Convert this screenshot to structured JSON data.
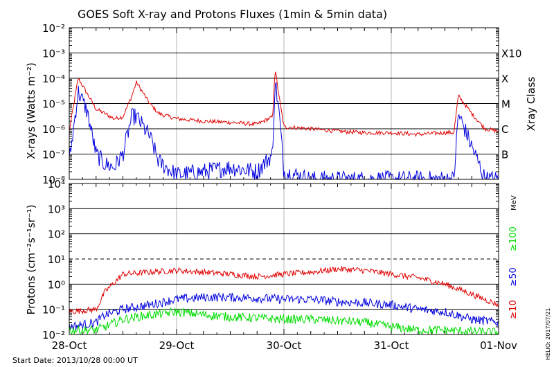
{
  "title": "GOES Soft X-ray and Protons Fluxes  (1min & 5min data)",
  "footer": {
    "start_date": "Start Date: 2013/10/28 00:00 UT",
    "credit": "HELIO: 2017/07/21"
  },
  "colors": {
    "xray_long": "#e00000",
    "xray_short": "#0000dd",
    "p10": "#e00000",
    "p50": "#0000dd",
    "p100": "#00dd00",
    "axis": "#000000",
    "vgrid": "#b4b4b4"
  },
  "x_axis": {
    "start": "2013-10-28",
    "end": "2013-11-01",
    "tick_labels": [
      "28-Oct",
      "29-Oct",
      "30-Oct",
      "31-Oct",
      "01-Nov"
    ]
  },
  "chart_data": [
    {
      "type": "line",
      "title": "GOES Soft X-ray and Protons Fluxes  (1min & 5min data)",
      "ylabel": "X-rays (Watts m⁻²)",
      "yscale": "log",
      "ylim": [
        1e-08,
        0.01
      ],
      "y_tick_labels": [
        "10⁻⁸",
        "10⁻⁷",
        "10⁻⁶",
        "10⁻⁵",
        "10⁻⁴",
        "10⁻³",
        "10⁻²"
      ],
      "right_axis": {
        "label": "Xray Class",
        "classes": [
          {
            "label": "B",
            "value": 1e-07
          },
          {
            "label": "C",
            "value": 1e-06
          },
          {
            "label": "M",
            "value": 1e-05
          },
          {
            "label": "X",
            "value": 0.0001
          },
          {
            "label": "X10",
            "value": 0.001
          }
        ]
      },
      "grid": true,
      "x": [
        "2013-10-28 00:00",
        "2013-10-28 02:00",
        "2013-10-28 04:00",
        "2013-10-28 06:00",
        "2013-10-28 08:00",
        "2013-10-28 10:00",
        "2013-10-28 12:00",
        "2013-10-28 14:00",
        "2013-10-28 15:00",
        "2013-10-28 18:00",
        "2013-10-28 20:00",
        "2013-10-29 00:00",
        "2013-10-29 06:00",
        "2013-10-29 12:00",
        "2013-10-29 18:00",
        "2013-10-29 21:30",
        "2013-10-29 22:00",
        "2013-10-29 23:00",
        "2013-10-30 00:00",
        "2013-10-30 06:00",
        "2013-10-30 12:00",
        "2013-10-30 18:00",
        "2013-10-31 00:00",
        "2013-10-31 06:00",
        "2013-10-31 12:00",
        "2013-10-31 14:00",
        "2013-10-31 15:00",
        "2013-10-31 18:00",
        "2013-10-31 21:00",
        "2013-11-01 00:00"
      ],
      "series": [
        {
          "color": "#e00000",
          "values": [
            8e-07,
            0.0001,
            2.5e-05,
            6e-06,
            4e-06,
            2.5e-06,
            3e-06,
            2e-05,
            7e-05,
            1e-05,
            4e-06,
            2.5e-06,
            2e-06,
            1.8e-06,
            1.5e-06,
            3e-06,
            0.00025,
            1.5e-05,
            1.2e-06,
            1e-06,
            8e-07,
            7e-07,
            7e-07,
            6e-07,
            7e-07,
            7e-07,
            2e-05,
            4e-06,
            1e-06,
            8e-07
          ]
        },
        {
          "color": "#0000dd",
          "values": [
            5e-08,
            3e-05,
            5e-06,
            1e-07,
            4e-08,
            3e-08,
            1e-07,
            3e-06,
            3e-06,
            5e-07,
            5e-08,
            1.5e-08,
            2e-08,
            3e-08,
            2e-08,
            1e-07,
            0.0001,
            3e-06,
            2e-08,
            1e-08,
            1e-08,
            1e-08,
            1e-08,
            1e-08,
            1e-08,
            1e-08,
            4e-06,
            2e-07,
            1e-08,
            1e-08
          ]
        }
      ]
    },
    {
      "type": "line",
      "ylabel": "Protons (cm⁻²s⁻¹sr⁻¹)",
      "yscale": "log",
      "ylim": [
        0.01,
        10000
      ],
      "y_tick_labels": [
        "10⁻²",
        "10⁻¹",
        "10⁰",
        "10¹",
        "10²",
        "10³",
        "10⁴"
      ],
      "threshold_line": 10,
      "right_axis": {
        "unit": "MeV"
      },
      "grid": true,
      "x": [
        "2013-10-28 00:00",
        "2013-10-28 06:00",
        "2013-10-28 08:00",
        "2013-10-28 12:00",
        "2013-10-28 18:00",
        "2013-10-29 00:00",
        "2013-10-29 06:00",
        "2013-10-29 12:00",
        "2013-10-29 18:00",
        "2013-10-30 00:00",
        "2013-10-30 06:00",
        "2013-10-30 12:00",
        "2013-10-30 18:00",
        "2013-10-31 00:00",
        "2013-10-31 06:00",
        "2013-10-31 12:00",
        "2013-10-31 18:00",
        "2013-11-01 00:00"
      ],
      "series": [
        {
          "name": "≥10",
          "color": "#e00000",
          "values": [
            0.08,
            0.1,
            0.5,
            2.5,
            3.0,
            3.5,
            3.0,
            2.5,
            2.0,
            2.5,
            3.0,
            4.0,
            3.5,
            2.5,
            1.8,
            1.0,
            0.4,
            0.15
          ]
        },
        {
          "name": "≥50",
          "color": "#0000dd",
          "values": [
            0.02,
            0.03,
            0.06,
            0.1,
            0.15,
            0.25,
            0.3,
            0.3,
            0.28,
            0.25,
            0.25,
            0.2,
            0.18,
            0.15,
            0.1,
            0.08,
            0.04,
            0.03
          ]
        },
        {
          "name": "≥100",
          "color": "#00dd00",
          "values": [
            0.015,
            0.015,
            0.02,
            0.04,
            0.06,
            0.08,
            0.06,
            0.05,
            0.045,
            0.04,
            0.04,
            0.035,
            0.03,
            0.02,
            0.015,
            0.015,
            0.013,
            0.012
          ]
        }
      ]
    }
  ]
}
